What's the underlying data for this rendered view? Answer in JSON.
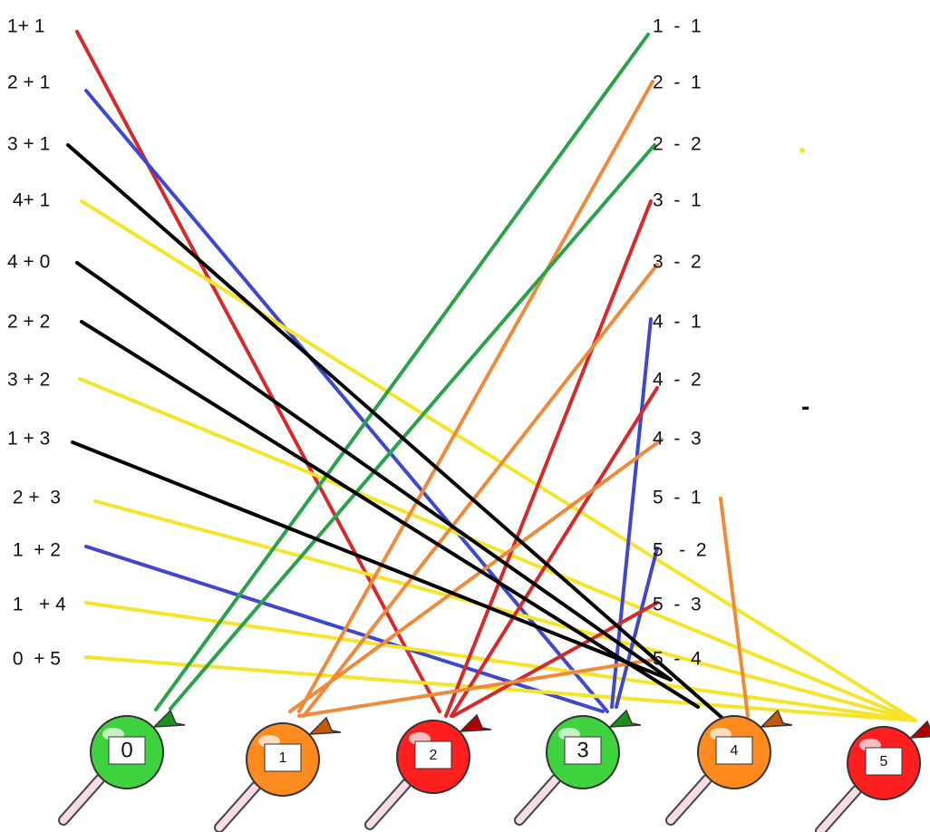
{
  "left_expressions": [
    "1+ 1",
    "2 + 1",
    "3 + 1",
    " 4+ 1",
    "4 + 0",
    "2 + 2",
    "3 + 2",
    "1 + 3",
    " 2 +  3",
    " 1  + 2",
    " 1   + 4",
    " 0  + 5"
  ],
  "right_expressions": [
    "1  -  1",
    "2  -  1",
    "2  -  2",
    "3  -  1",
    "3  -  2",
    "4  -  1",
    "4  -  2",
    "4  -  3",
    "5  -  1",
    "5   -  2",
    "5  -  3",
    "5  -  4"
  ],
  "lollipops": [
    "0",
    "1",
    "2",
    "3",
    "4",
    "5"
  ],
  "stray_mark": "-"
}
